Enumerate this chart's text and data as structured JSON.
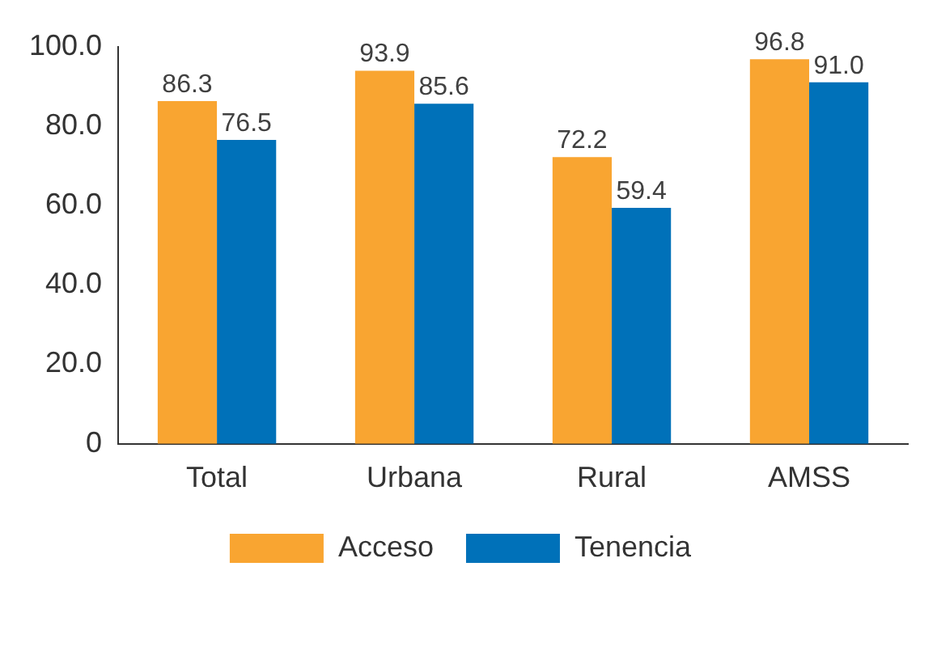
{
  "chart_data": {
    "type": "bar",
    "categories": [
      "Total",
      "Urbana",
      "Rural",
      "AMSS"
    ],
    "series": [
      {
        "name": "Acceso",
        "color": "#f9a531",
        "values": [
          86.3,
          93.9,
          72.2,
          96.8
        ],
        "value_labels": [
          "86.3",
          "93.9",
          "72.2",
          "96.8"
        ]
      },
      {
        "name": "Tenencia",
        "color": "#0071b9",
        "values": [
          76.5,
          85.6,
          59.4,
          91.0
        ],
        "value_labels": [
          "76.5",
          "85.6",
          "59.4",
          "91.0"
        ]
      }
    ],
    "ylim": [
      0,
      100
    ],
    "yticks": [
      0,
      {
        "value": 20,
        "label": "20.0"
      },
      {
        "value": 40,
        "label": "40.0"
      },
      {
        "value": 60,
        "label": "60.0"
      },
      {
        "value": 80,
        "label": "80.0"
      },
      {
        "value": 100,
        "label": "100.0"
      }
    ],
    "grid": false,
    "legend": "bottom"
  }
}
